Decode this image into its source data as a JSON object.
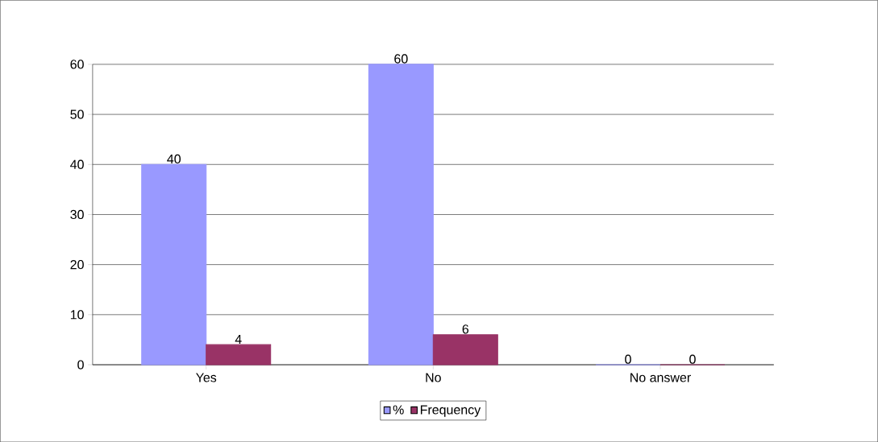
{
  "chart_data": {
    "type": "bar",
    "categories": [
      "Yes",
      "No",
      "No answer"
    ],
    "series": [
      {
        "name": "%",
        "color": "#9999ff",
        "values": [
          40,
          60,
          0
        ]
      },
      {
        "name": "Frequency",
        "color": "#993366",
        "values": [
          4,
          6,
          0
        ]
      }
    ],
    "ylim": [
      0,
      60
    ],
    "yticks": [
      0,
      10,
      20,
      30,
      40,
      50,
      60
    ],
    "grid": "y",
    "legend": "bottom",
    "data_labels": true
  }
}
